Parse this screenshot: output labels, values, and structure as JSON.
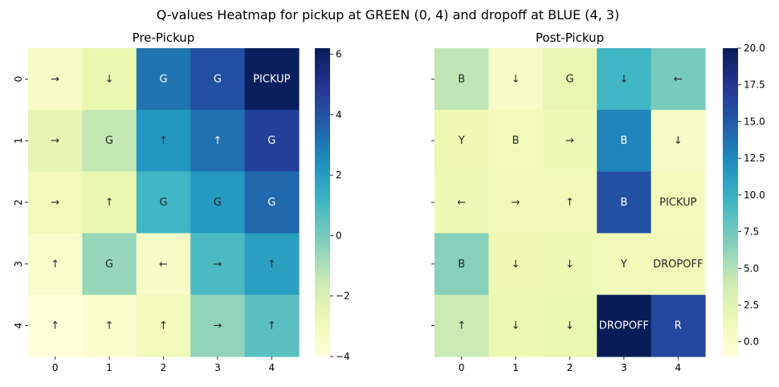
{
  "chart_data": {
    "type": "heatmap",
    "title": "Q-values Heatmap for pickup at GREEN (0, 4) and dropoff at BLUE (4, 3)",
    "colormap": "YlGnBu",
    "panels": [
      {
        "title": "Pre-Pickup",
        "x_tick_labels": [
          "0",
          "1",
          "2",
          "3",
          "4"
        ],
        "y_tick_labels": [
          "0",
          "1",
          "2",
          "3",
          "4"
        ],
        "values": [
          [
            -3.4,
            -2.6,
            3.1,
            4.1,
            6.1
          ],
          [
            -2.5,
            -1.4,
            2.2,
            3.2,
            4.6
          ],
          [
            -3.0,
            -2.6,
            1.1,
            2.1,
            3.4
          ],
          [
            -3.6,
            -0.6,
            -3.4,
            0.9,
            1.9
          ],
          [
            -4.0,
            -3.6,
            -3.0,
            -0.5,
            0.6
          ]
        ],
        "annotations": [
          [
            "→",
            "↓",
            "G",
            "G",
            "PICKUP"
          ],
          [
            "→",
            "G",
            "↑",
            "↑",
            "G"
          ],
          [
            "→",
            "↑",
            "G",
            "G",
            "G"
          ],
          [
            "↑",
            "G",
            "←",
            "→",
            "↑"
          ],
          [
            "↑",
            "↑",
            "↑",
            "→",
            "↑"
          ]
        ],
        "colorbar": {
          "vmin": -4,
          "vmax": 6.2,
          "ticks": [
            -4,
            -2,
            0,
            2,
            4,
            6
          ],
          "tick_labels": [
            "−4",
            "−2",
            "0",
            "2",
            "4",
            "6"
          ]
        }
      },
      {
        "title": "Post-Pickup",
        "x_tick_labels": [
          "0",
          "1",
          "2",
          "3",
          "4"
        ],
        "y_tick_labels": [
          "0",
          "1",
          "2",
          "3",
          "4"
        ],
        "values": [
          [
            4.5,
            0.2,
            2.0,
            9.5,
            7.2
          ],
          [
            1.5,
            1.0,
            1.3,
            12.8,
            0.3
          ],
          [
            1.3,
            1.2,
            1.1,
            15.6,
            0.9
          ],
          [
            6.6,
            1.4,
            1.3,
            1.1,
            1.1
          ],
          [
            4.0,
            1.7,
            1.8,
            20.0,
            16.2
          ]
        ],
        "annotations": [
          [
            "B",
            "↓",
            "G",
            "↓",
            "←"
          ],
          [
            "Y",
            "B",
            "→",
            "B",
            "↓"
          ],
          [
            "←",
            "→",
            "↑",
            "B",
            "PICKUP"
          ],
          [
            "B",
            "↓",
            "↓",
            "Y",
            "DROPOFF"
          ],
          [
            "↑",
            "↓",
            "↓",
            "DROPOFF",
            "R"
          ]
        ],
        "colorbar": {
          "vmin": -1,
          "vmax": 20,
          "ticks": [
            0,
            2.5,
            5,
            7.5,
            10,
            12.5,
            15,
            17.5,
            20
          ],
          "tick_labels": [
            "0.0",
            "2.5",
            "5.0",
            "7.5",
            "10.0",
            "12.5",
            "15.0",
            "17.5",
            "20.0"
          ]
        }
      }
    ]
  }
}
